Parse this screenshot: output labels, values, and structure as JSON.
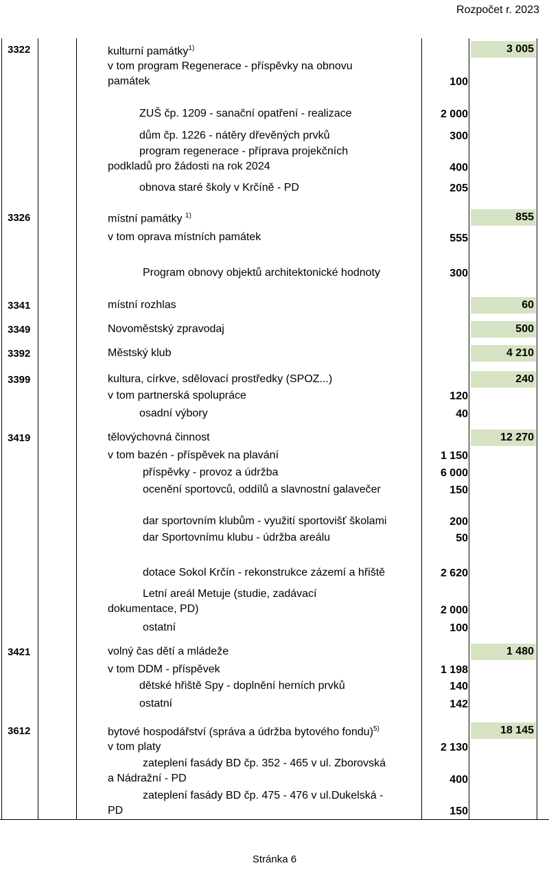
{
  "header": "Rozpočet r. 2023",
  "footer": "Stránka 6",
  "sections": [
    {
      "code": "3322",
      "title": "kulturní památky",
      "sup": "1)",
      "total": "3 005",
      "lines": [
        "v tom program Regenerace - příspěvky na obnovu",
        "památek",
        "ZUŠ čp. 1209 - sanační opatření - realizace",
        "dům čp. 1226 - nátěry dřevěných prvků",
        "program regenerace - příprava projekčních",
        "podkladů pro žádosti na rok 2024",
        "obnova staré školy v Krčíně  - PD"
      ],
      "amounts": [
        "100",
        "2 000",
        "300",
        "400",
        "205"
      ]
    },
    {
      "code": "3326",
      "title": "místní památky ",
      "sup": "1)",
      "total": "855",
      "lines": [
        "v tom oprava místních památek",
        "Program obnovy objektů architektonické hodnoty"
      ],
      "amounts": [
        "555",
        "300"
      ]
    },
    {
      "code": "3341",
      "title": "místní rozhlas",
      "total": "60"
    },
    {
      "code": "3349",
      "title": "Novoměstský zpravodaj",
      "total": "500"
    },
    {
      "code": "3392",
      "title": "Městský klub",
      "total": "4 210"
    },
    {
      "code": "3399",
      "title": "kultura, církve, sdělovací prostředky (SPOZ...)",
      "total": "240",
      "lines": [
        "v tom partnerská spolupráce",
        "osadní výbory"
      ],
      "amounts": [
        "120",
        "40"
      ]
    },
    {
      "code": "3419",
      "title": "tělovýchovná činnost",
      "total": "12 270",
      "lines": [
        "v tom bazén -  příspěvek na plavání",
        "příspěvky -  provoz a údržba",
        "ocenění sportovců, oddílů a slavnostní galavečer",
        "dar sportovním klubům - využití sportovišť školami",
        "dar Sportovnímu klubu - údržba areálu",
        "dotace Sokol Krčín - rekonstrukce zázemí a hřiště",
        "Letní areál Metuje (studie, zadávací",
        "dokumentace, PD)",
        "ostatní"
      ],
      "amounts": [
        "1 150",
        "6 000",
        "150",
        "200",
        "50",
        "2 620",
        "2 000",
        "100"
      ]
    },
    {
      "code": "3421",
      "title": "volný čas dětí a mládeže",
      "total": "1 480",
      "lines": [
        "v tom DDM - příspěvek",
        "dětské hřiště Spy - doplnění herních prvků",
        "ostatní"
      ],
      "amounts": [
        "1 198",
        "140",
        "142"
      ]
    },
    {
      "code": "3612",
      "title": "bytové hospodářství (správa a údržba bytového fondu)",
      "sup": "5)",
      "total": "18 145",
      "lines": [
        "v tom platy",
        "zateplení fasády BD čp. 352 - 465 v ul. Zborovská",
        "a Nádražní - PD",
        "zateplení fasády BD čp. 475 - 476 v ul.Dukelská -",
        "PD"
      ],
      "amounts": [
        "2 130",
        "400",
        "150"
      ]
    }
  ]
}
